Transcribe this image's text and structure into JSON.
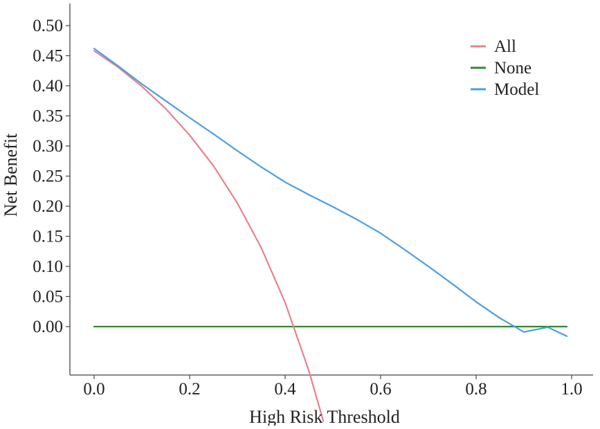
{
  "chart_data": {
    "type": "line",
    "title": "",
    "xlabel": "High Risk Threshold",
    "ylabel": "Net Benefit",
    "xlim": [
      -0.05,
      1.02
    ],
    "ylim": [
      -0.075,
      0.54
    ],
    "xticks": [
      0.0,
      0.2,
      0.4,
      0.6,
      0.8,
      1.0
    ],
    "xtick_labels": [
      "0.0",
      "0.2",
      "0.4",
      "0.6",
      "0.8",
      "1.0"
    ],
    "yticks": [
      0.0,
      0.05,
      0.1,
      0.15,
      0.2,
      0.25,
      0.3,
      0.35,
      0.4,
      0.45,
      0.5
    ],
    "ytick_labels": [
      "0.00",
      "0.05",
      "0.10",
      "0.15",
      "0.20",
      "0.25",
      "0.30",
      "0.35",
      "0.40",
      "0.45",
      "0.50"
    ],
    "grid": false,
    "legend_position": "top-right",
    "series": [
      {
        "name": "All",
        "color": "#e8808e",
        "x": [
          0.0,
          0.05,
          0.1,
          0.15,
          0.2,
          0.25,
          0.3,
          0.35,
          0.4,
          0.45,
          0.48
        ],
        "y": [
          0.458,
          0.431,
          0.399,
          0.362,
          0.318,
          0.267,
          0.205,
          0.131,
          0.04,
          -0.074,
          -0.157
        ]
      },
      {
        "name": "None",
        "color": "#2f8a2f",
        "x": [
          0.0,
          0.99
        ],
        "y": [
          0.0,
          0.0
        ]
      },
      {
        "name": "Model",
        "color": "#4a9fe0",
        "x": [
          0.0,
          0.05,
          0.1,
          0.15,
          0.2,
          0.25,
          0.3,
          0.35,
          0.4,
          0.45,
          0.5,
          0.55,
          0.6,
          0.65,
          0.7,
          0.75,
          0.8,
          0.85,
          0.9,
          0.95,
          0.99
        ],
        "y": [
          0.462,
          0.433,
          0.403,
          0.375,
          0.347,
          0.32,
          0.292,
          0.265,
          0.24,
          0.219,
          0.199,
          0.178,
          0.155,
          0.128,
          0.1,
          0.071,
          0.041,
          0.014,
          -0.009,
          -0.001,
          -0.016
        ]
      }
    ]
  }
}
